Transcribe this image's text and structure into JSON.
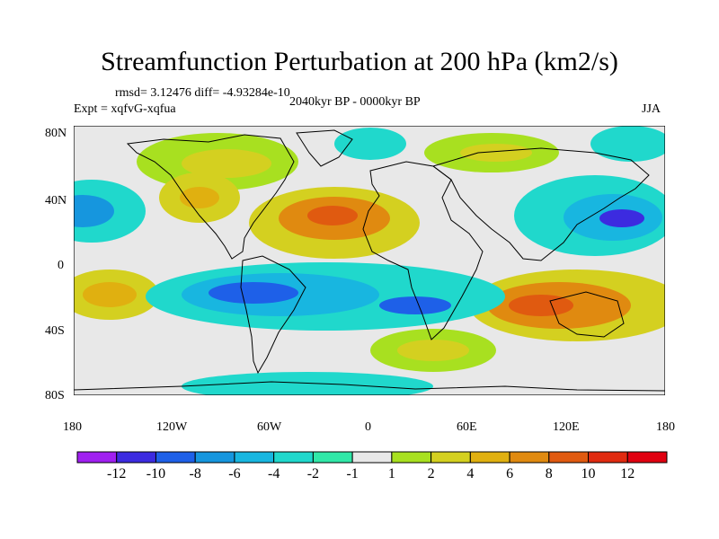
{
  "title": "Streamfunction Perturbation at 200 hPa (km2/s)",
  "stats": {
    "rmsd_text": "rmsd= 3.12476 diff= -4.93284e-10",
    "expt_text": "Expt = xqfvG-xqfua",
    "period_text": "2040kyr BP - 0000kyr BP",
    "season": "JJA"
  },
  "lat_labels": [
    "80N",
    "40N",
    "0",
    "40S",
    "80S"
  ],
  "lon_labels": [
    "180",
    "120W",
    "60W",
    "0",
    "60E",
    "120E",
    "180"
  ],
  "colorbar": {
    "labels": [
      "-12",
      "-10",
      "-8",
      "-6",
      "-4",
      "-2",
      "-1",
      "1",
      "2",
      "4",
      "6",
      "8",
      "10",
      "12"
    ],
    "colors": [
      "#a020f0",
      "#3c2be0",
      "#1e60e8",
      "#1696de",
      "#18b6e0",
      "#20d8cc",
      "#30e8a8",
      "#e8e8e8",
      "#a8e020",
      "#d4d020",
      "#e0b010",
      "#e08a10",
      "#e05a10",
      "#e02a10",
      "#e00010"
    ]
  },
  "colors": {
    "background": "#e8e8e8",
    "coast": "#000000"
  }
}
